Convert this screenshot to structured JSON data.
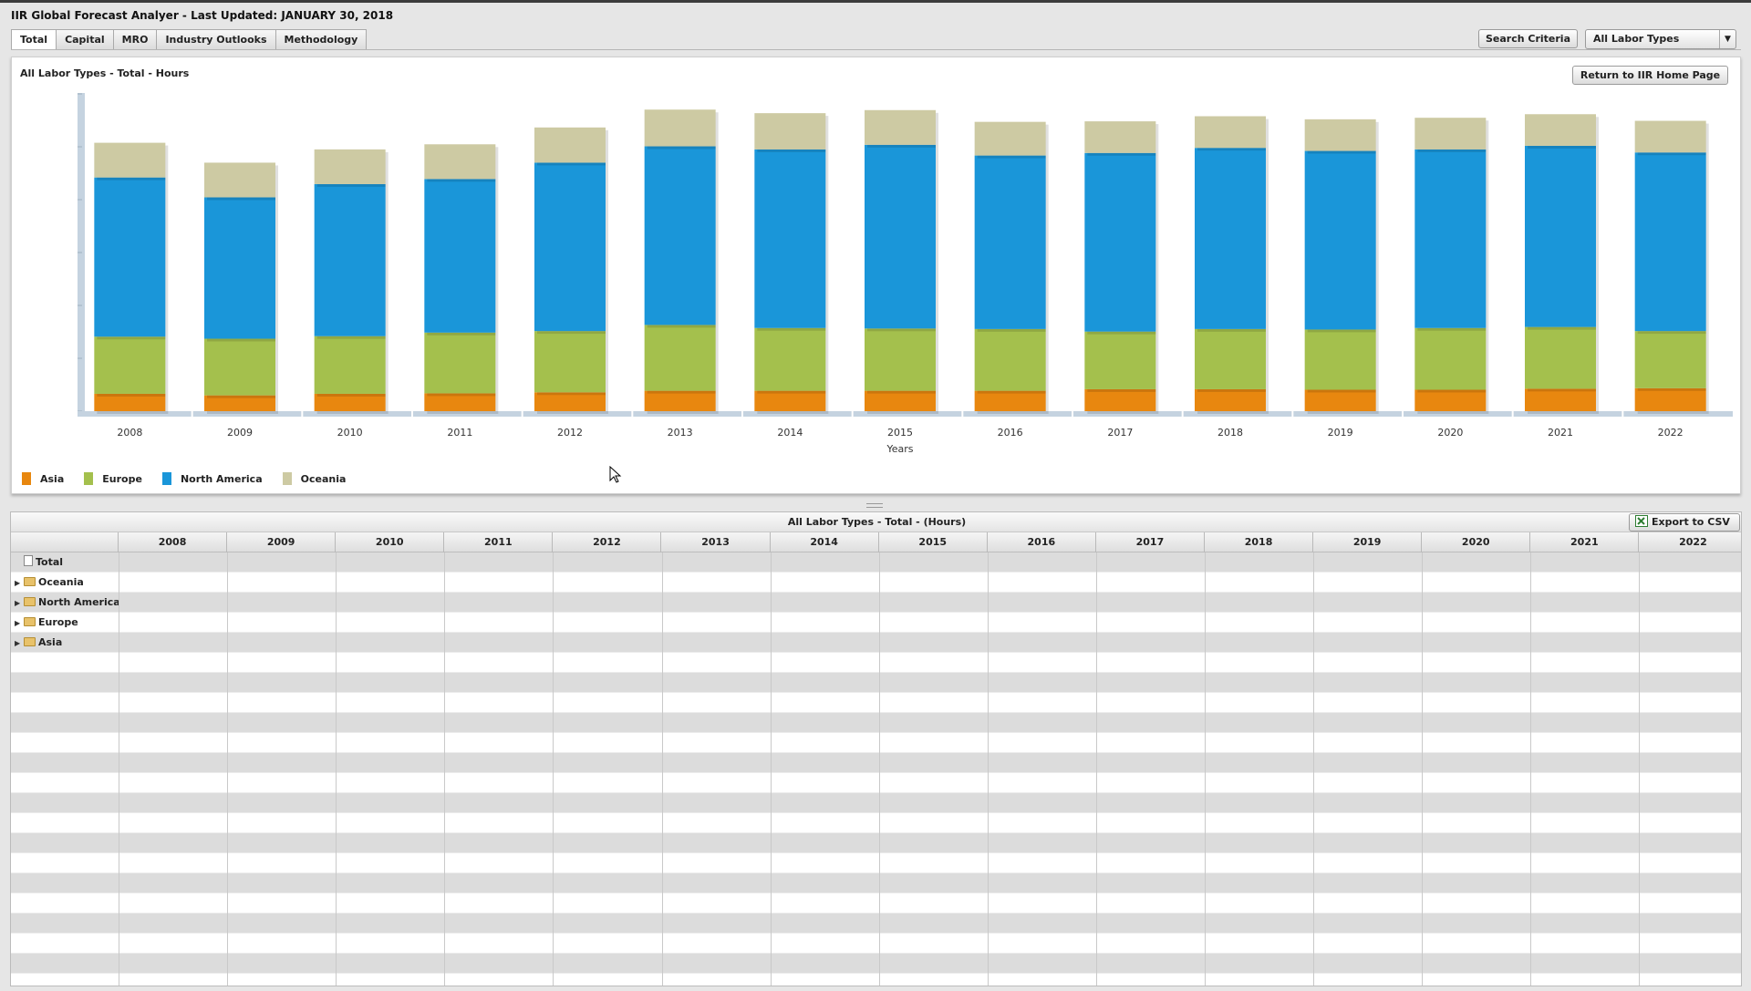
{
  "app": {
    "title": "IIR Global Forecast Analyer - Last Updated: JANUARY 30, 2018"
  },
  "tabs": [
    "Total",
    "Capital",
    "MRO",
    "Industry Outlooks",
    "Methodology"
  ],
  "toolbar": {
    "search_label": "Search Criteria",
    "labor_select": "All Labor Types",
    "home_label": "Return to IIR Home Page"
  },
  "chart_panel": {
    "title": "All Labor Types - Total - Hours"
  },
  "chart_data": {
    "type": "bar",
    "stacked": true,
    "categories": [
      "2008",
      "2009",
      "2010",
      "2011",
      "2012",
      "2013",
      "2014",
      "2015",
      "2016",
      "2017",
      "2018",
      "2019",
      "2020",
      "2021",
      "2022"
    ],
    "xlabel": "Years",
    "ylabel": "",
    "ylim": [
      0,
      6
    ],
    "grid": false,
    "legend": "bottom-left",
    "series": [
      {
        "name": "Asia",
        "color": "#e8870f",
        "values": [
          0.34,
          0.31,
          0.34,
          0.35,
          0.37,
          0.4,
          0.4,
          0.4,
          0.4,
          0.43,
          0.43,
          0.42,
          0.42,
          0.44,
          0.45
        ]
      },
      {
        "name": "Europe",
        "color": "#a4c04d",
        "values": [
          1.12,
          1.11,
          1.13,
          1.19,
          1.2,
          1.29,
          1.23,
          1.22,
          1.21,
          1.13,
          1.18,
          1.18,
          1.21,
          1.21,
          1.12
        ]
      },
      {
        "name": "North America",
        "color": "#1a96d9",
        "values": [
          3.12,
          2.77,
          2.98,
          3.01,
          3.3,
          3.5,
          3.5,
          3.6,
          3.4,
          3.5,
          3.55,
          3.5,
          3.5,
          3.55,
          3.5
        ]
      },
      {
        "name": "Oceania",
        "color": "#cdcaa3",
        "values": [
          0.68,
          0.68,
          0.68,
          0.68,
          0.69,
          0.72,
          0.71,
          0.68,
          0.66,
          0.62,
          0.62,
          0.62,
          0.62,
          0.62,
          0.62
        ]
      }
    ]
  },
  "grid": {
    "title": "All Labor Types - Total - (Hours)",
    "export_label": "Export to CSV",
    "years": [
      "2008",
      "2009",
      "2010",
      "2011",
      "2012",
      "2013",
      "2014",
      "2015",
      "2016",
      "2017",
      "2018",
      "2019",
      "2020",
      "2021",
      "2022"
    ],
    "rows": [
      {
        "label": "Total",
        "icon": "doc"
      },
      {
        "label": "Oceania",
        "icon": "folder"
      },
      {
        "label": "North America",
        "icon": "folder"
      },
      {
        "label": "Europe",
        "icon": "folder"
      },
      {
        "label": "Asia",
        "icon": "folder"
      }
    ]
  }
}
